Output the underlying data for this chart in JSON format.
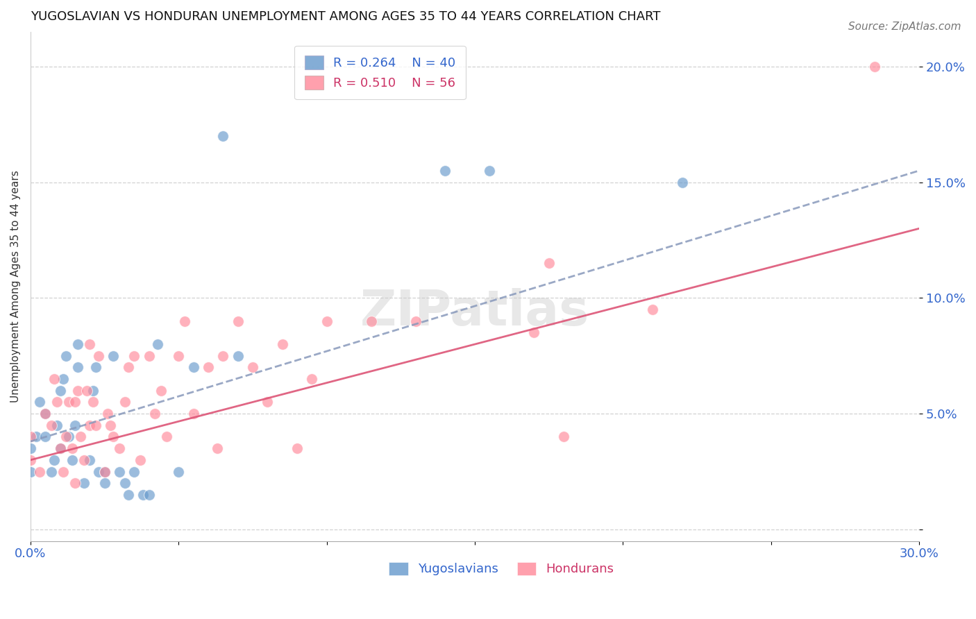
{
  "title": "YUGOSLAVIAN VS HONDURAN UNEMPLOYMENT AMONG AGES 35 TO 44 YEARS CORRELATION CHART",
  "source": "Source: ZipAtlas.com",
  "xlabel": "",
  "ylabel": "Unemployment Among Ages 35 to 44 years",
  "xlim": [
    0.0,
    0.3
  ],
  "ylim": [
    -0.005,
    0.215
  ],
  "xticks": [
    0.0,
    0.05,
    0.1,
    0.15,
    0.2,
    0.25,
    0.3
  ],
  "xtick_labels": [
    "0.0%",
    "",
    "",
    "",
    "",
    "",
    "30.0%"
  ],
  "yticks": [
    0.0,
    0.05,
    0.1,
    0.15,
    0.2
  ],
  "ytick_labels": [
    "",
    "5.0%",
    "10.0%",
    "15.0%",
    "20.0%"
  ],
  "yugoslavian_color": "#6699CC",
  "honduran_color": "#FF8899",
  "yugoslavian_R": 0.264,
  "yugoslavian_N": 40,
  "honduran_R": 0.51,
  "honduran_N": 56,
  "trend_blue_color": "#8899BB",
  "trend_pink_color": "#DD5577",
  "watermark": "ZIPatlas",
  "yugoslavian_x": [
    0.0,
    0.0,
    0.002,
    0.003,
    0.005,
    0.005,
    0.007,
    0.008,
    0.009,
    0.01,
    0.01,
    0.011,
    0.012,
    0.013,
    0.014,
    0.015,
    0.016,
    0.016,
    0.018,
    0.02,
    0.021,
    0.022,
    0.023,
    0.025,
    0.025,
    0.028,
    0.03,
    0.032,
    0.033,
    0.035,
    0.038,
    0.04,
    0.043,
    0.05,
    0.055,
    0.065,
    0.07,
    0.14,
    0.155,
    0.22
  ],
  "yugoslavian_y": [
    0.035,
    0.025,
    0.04,
    0.055,
    0.04,
    0.05,
    0.025,
    0.03,
    0.045,
    0.035,
    0.06,
    0.065,
    0.075,
    0.04,
    0.03,
    0.045,
    0.08,
    0.07,
    0.02,
    0.03,
    0.06,
    0.07,
    0.025,
    0.02,
    0.025,
    0.075,
    0.025,
    0.02,
    0.015,
    0.025,
    0.015,
    0.015,
    0.08,
    0.025,
    0.07,
    0.17,
    0.075,
    0.155,
    0.155,
    0.15
  ],
  "honduran_x": [
    0.0,
    0.0,
    0.003,
    0.005,
    0.007,
    0.008,
    0.009,
    0.01,
    0.011,
    0.012,
    0.013,
    0.014,
    0.015,
    0.015,
    0.016,
    0.017,
    0.018,
    0.019,
    0.02,
    0.02,
    0.021,
    0.022,
    0.023,
    0.025,
    0.026,
    0.027,
    0.028,
    0.03,
    0.032,
    0.033,
    0.035,
    0.037,
    0.04,
    0.042,
    0.044,
    0.046,
    0.05,
    0.052,
    0.055,
    0.06,
    0.063,
    0.065,
    0.07,
    0.075,
    0.08,
    0.085,
    0.09,
    0.095,
    0.1,
    0.115,
    0.13,
    0.17,
    0.175,
    0.18,
    0.21,
    0.285
  ],
  "honduran_y": [
    0.03,
    0.04,
    0.025,
    0.05,
    0.045,
    0.065,
    0.055,
    0.035,
    0.025,
    0.04,
    0.055,
    0.035,
    0.02,
    0.055,
    0.06,
    0.04,
    0.03,
    0.06,
    0.08,
    0.045,
    0.055,
    0.045,
    0.075,
    0.025,
    0.05,
    0.045,
    0.04,
    0.035,
    0.055,
    0.07,
    0.075,
    0.03,
    0.075,
    0.05,
    0.06,
    0.04,
    0.075,
    0.09,
    0.05,
    0.07,
    0.035,
    0.075,
    0.09,
    0.07,
    0.055,
    0.08,
    0.035,
    0.065,
    0.09,
    0.09,
    0.09,
    0.085,
    0.115,
    0.04,
    0.095,
    0.2
  ],
  "trend_yug_x0": 0.0,
  "trend_yug_x1": 0.3,
  "trend_yug_y0": 0.038,
  "trend_yug_y1": 0.155,
  "trend_hon_x0": 0.0,
  "trend_hon_x1": 0.3,
  "trend_hon_y0": 0.03,
  "trend_hon_y1": 0.13
}
